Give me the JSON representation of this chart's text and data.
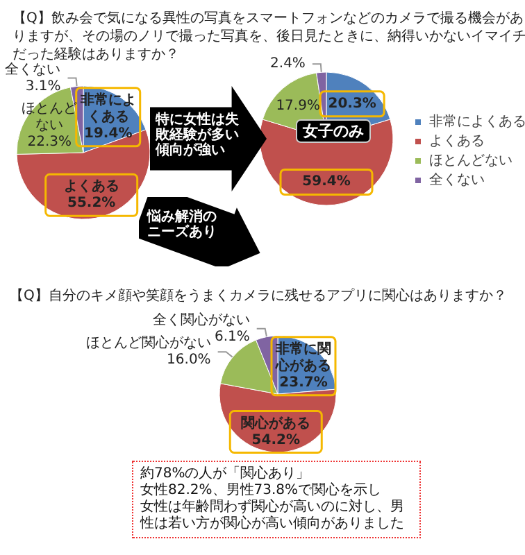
{
  "chart_data": [
    {
      "type": "pie",
      "title": "【Q】飲み会で気になる異性の写真をスマートフォンなどのカメラで撮る機会がありますが、その場のノリで撮った写真を、後日見たときに、納得いかないイマイチだった経験はありますか？",
      "categories": [
        "非常によくある",
        "よくある",
        "ほとんどない",
        "全くない"
      ],
      "values": [
        19.4,
        55.2,
        22.3,
        3.1
      ],
      "value_labels": [
        "19.4%",
        "55.2%",
        "22.3%",
        "3.1%"
      ],
      "colors": [
        "#4f81bd",
        "#c0504d",
        "#9bbb59",
        "#8064a2"
      ],
      "legend": false,
      "annotations": [
        "特に女性は失敗経験が多い傾向が強い",
        "悩み解消のニーズあり"
      ]
    },
    {
      "type": "pie",
      "subtitle": "女子のみ",
      "categories": [
        "非常によくある",
        "よくある",
        "ほとんどない",
        "全くない"
      ],
      "values": [
        20.3,
        59.4,
        17.9,
        2.4
      ],
      "value_labels": [
        "20.3%",
        "59.4%",
        "17.9%",
        "2.4%"
      ],
      "colors": [
        "#4f81bd",
        "#c0504d",
        "#9bbb59",
        "#8064a2"
      ],
      "legend": "right"
    },
    {
      "type": "pie",
      "title": "【Q】自分のキメ顔や笑顔をうまくカメラに残せるアプリに関心はありますか？",
      "categories": [
        "非常に関心がある",
        "関心がある",
        "ほとんど関心がない",
        "全く関心がない"
      ],
      "values": [
        23.7,
        54.2,
        16.0,
        6.1
      ],
      "value_labels": [
        "23.7%",
        "54.2%",
        "16.0%",
        "6.1%"
      ],
      "colors": [
        "#4f81bd",
        "#c0504d",
        "#9bbb59",
        "#8064a2"
      ],
      "legend": false,
      "annotations": [
        "約78%の人が「関心あり」",
        "女性82.2%、男性73.8%で関心を示し",
        "女性は年齢問わず関心が高いのに対し、男性は若い方が関心が高い傾向がありました"
      ]
    }
  ]
}
